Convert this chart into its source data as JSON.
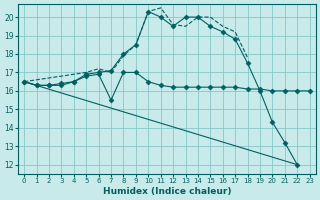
{
  "xlabel": "Humidex (Indice chaleur)",
  "bg_color": "#c8eaea",
  "line_color": "#006060",
  "grid_color": "#88c8c8",
  "xlim": [
    -0.5,
    23.5
  ],
  "ylim": [
    11.5,
    20.7
  ],
  "yticks": [
    12,
    13,
    14,
    15,
    16,
    17,
    18,
    19,
    20
  ],
  "xticks": [
    0,
    1,
    2,
    3,
    4,
    5,
    6,
    7,
    8,
    9,
    10,
    11,
    12,
    13,
    14,
    15,
    16,
    17,
    18,
    19,
    20,
    21,
    22,
    23
  ],
  "series": [
    {
      "x": [
        0,
        1,
        2,
        3,
        4,
        5,
        6,
        7,
        8,
        9,
        10,
        11,
        12,
        13,
        14,
        15,
        16,
        17,
        18,
        19,
        20,
        21,
        22
      ],
      "y": [
        16.5,
        16.3,
        16.3,
        16.4,
        16.5,
        16.9,
        17.0,
        17.1,
        18.0,
        18.5,
        20.3,
        20.0,
        19.5,
        20.0,
        20.0,
        19.5,
        19.2,
        18.8,
        17.5,
        16.0,
        14.3,
        13.2,
        12.0
      ],
      "style": "solid",
      "marker": "D",
      "markersize": 2.5
    },
    {
      "x": [
        0,
        1,
        2,
        3,
        4,
        5,
        6,
        7,
        8,
        9,
        10,
        11,
        12,
        13,
        14,
        15,
        16,
        17,
        18,
        19,
        20,
        21,
        22,
        23
      ],
      "y": [
        16.5,
        16.3,
        16.3,
        16.3,
        16.5,
        16.8,
        16.9,
        15.5,
        17.0,
        17.0,
        16.5,
        16.3,
        16.2,
        16.2,
        16.2,
        16.2,
        16.2,
        16.2,
        16.1,
        16.1,
        16.0,
        16.0,
        16.0,
        16.0
      ],
      "style": "solid",
      "marker": "D",
      "markersize": 2.5
    },
    {
      "x": [
        0,
        5,
        6,
        7,
        8,
        9,
        10,
        11,
        12,
        13,
        14,
        15,
        16,
        17,
        18
      ],
      "y": [
        16.5,
        17.0,
        17.2,
        17.0,
        17.9,
        18.5,
        20.3,
        20.5,
        19.6,
        19.5,
        20.0,
        20.0,
        19.5,
        19.2,
        17.8
      ],
      "style": "dashed",
      "marker": null,
      "markersize": 0
    },
    {
      "x": [
        0,
        22
      ],
      "y": [
        16.5,
        12.0
      ],
      "style": "solid",
      "marker": null,
      "markersize": 0
    }
  ]
}
